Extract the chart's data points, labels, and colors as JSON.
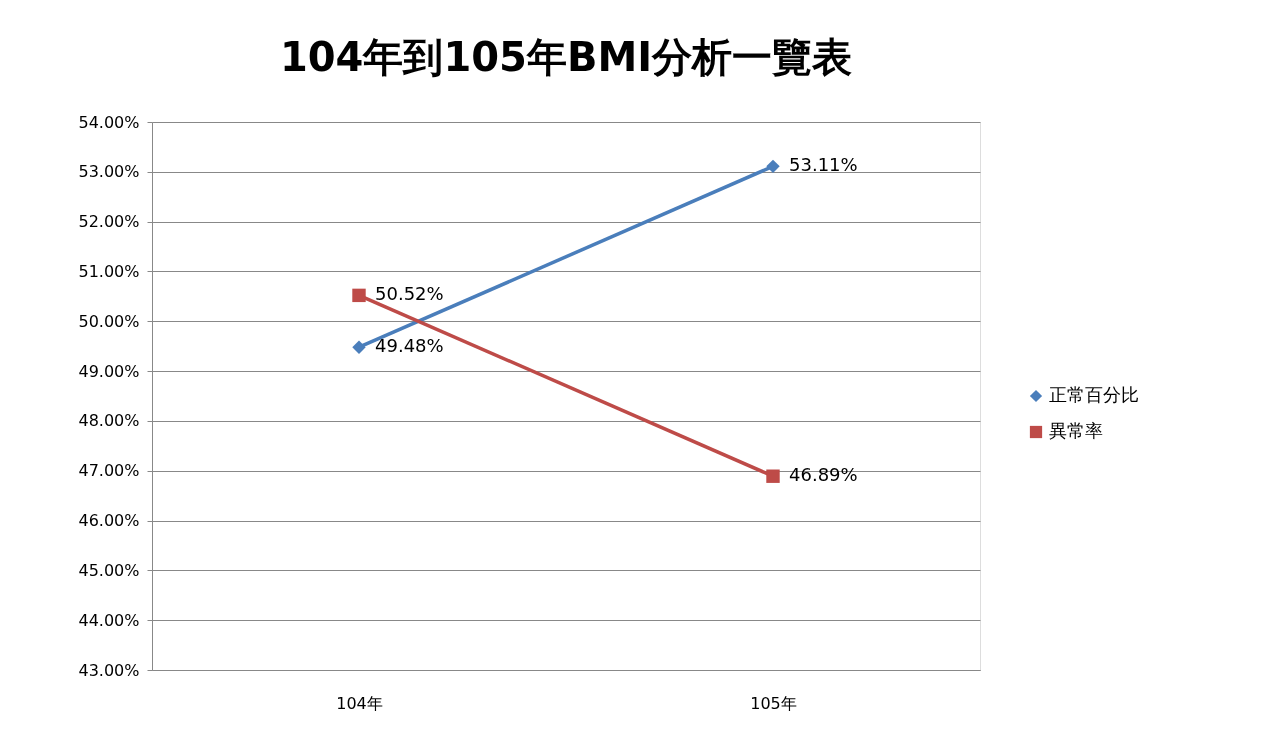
{
  "chart_data": {
    "type": "line",
    "title": "104年到105年BMI分析一覽表",
    "categories": [
      "104年",
      "105年"
    ],
    "series": [
      {
        "name": "正常百分比",
        "color": "#4a7ebb",
        "marker": "diamond",
        "values": [
          49.48,
          53.11
        ],
        "value_labels": [
          "49.48%",
          "53.11%"
        ]
      },
      {
        "name": "異常率",
        "color": "#be4b48",
        "marker": "square",
        "values": [
          50.52,
          46.89
        ],
        "value_labels": [
          "50.52%",
          "46.89%"
        ]
      }
    ],
    "ylim": [
      43,
      54
    ],
    "yticks": [
      {
        "value": 43,
        "label": "43.00%"
      },
      {
        "value": 44,
        "label": "44.00%"
      },
      {
        "value": 45,
        "label": "45.00%"
      },
      {
        "value": 46,
        "label": "46.00%"
      },
      {
        "value": 47,
        "label": "47.00%"
      },
      {
        "value": 48,
        "label": "48.00%"
      },
      {
        "value": 49,
        "label": "49.00%"
      },
      {
        "value": 50,
        "label": "50.00%"
      },
      {
        "value": 51,
        "label": "51.00%"
      },
      {
        "value": 52,
        "label": "52.00%"
      },
      {
        "value": 53,
        "label": "53.00%"
      },
      {
        "value": 54,
        "label": "54.00%"
      }
    ],
    "grid": "y",
    "legend": "right",
    "line_style": "solid"
  }
}
